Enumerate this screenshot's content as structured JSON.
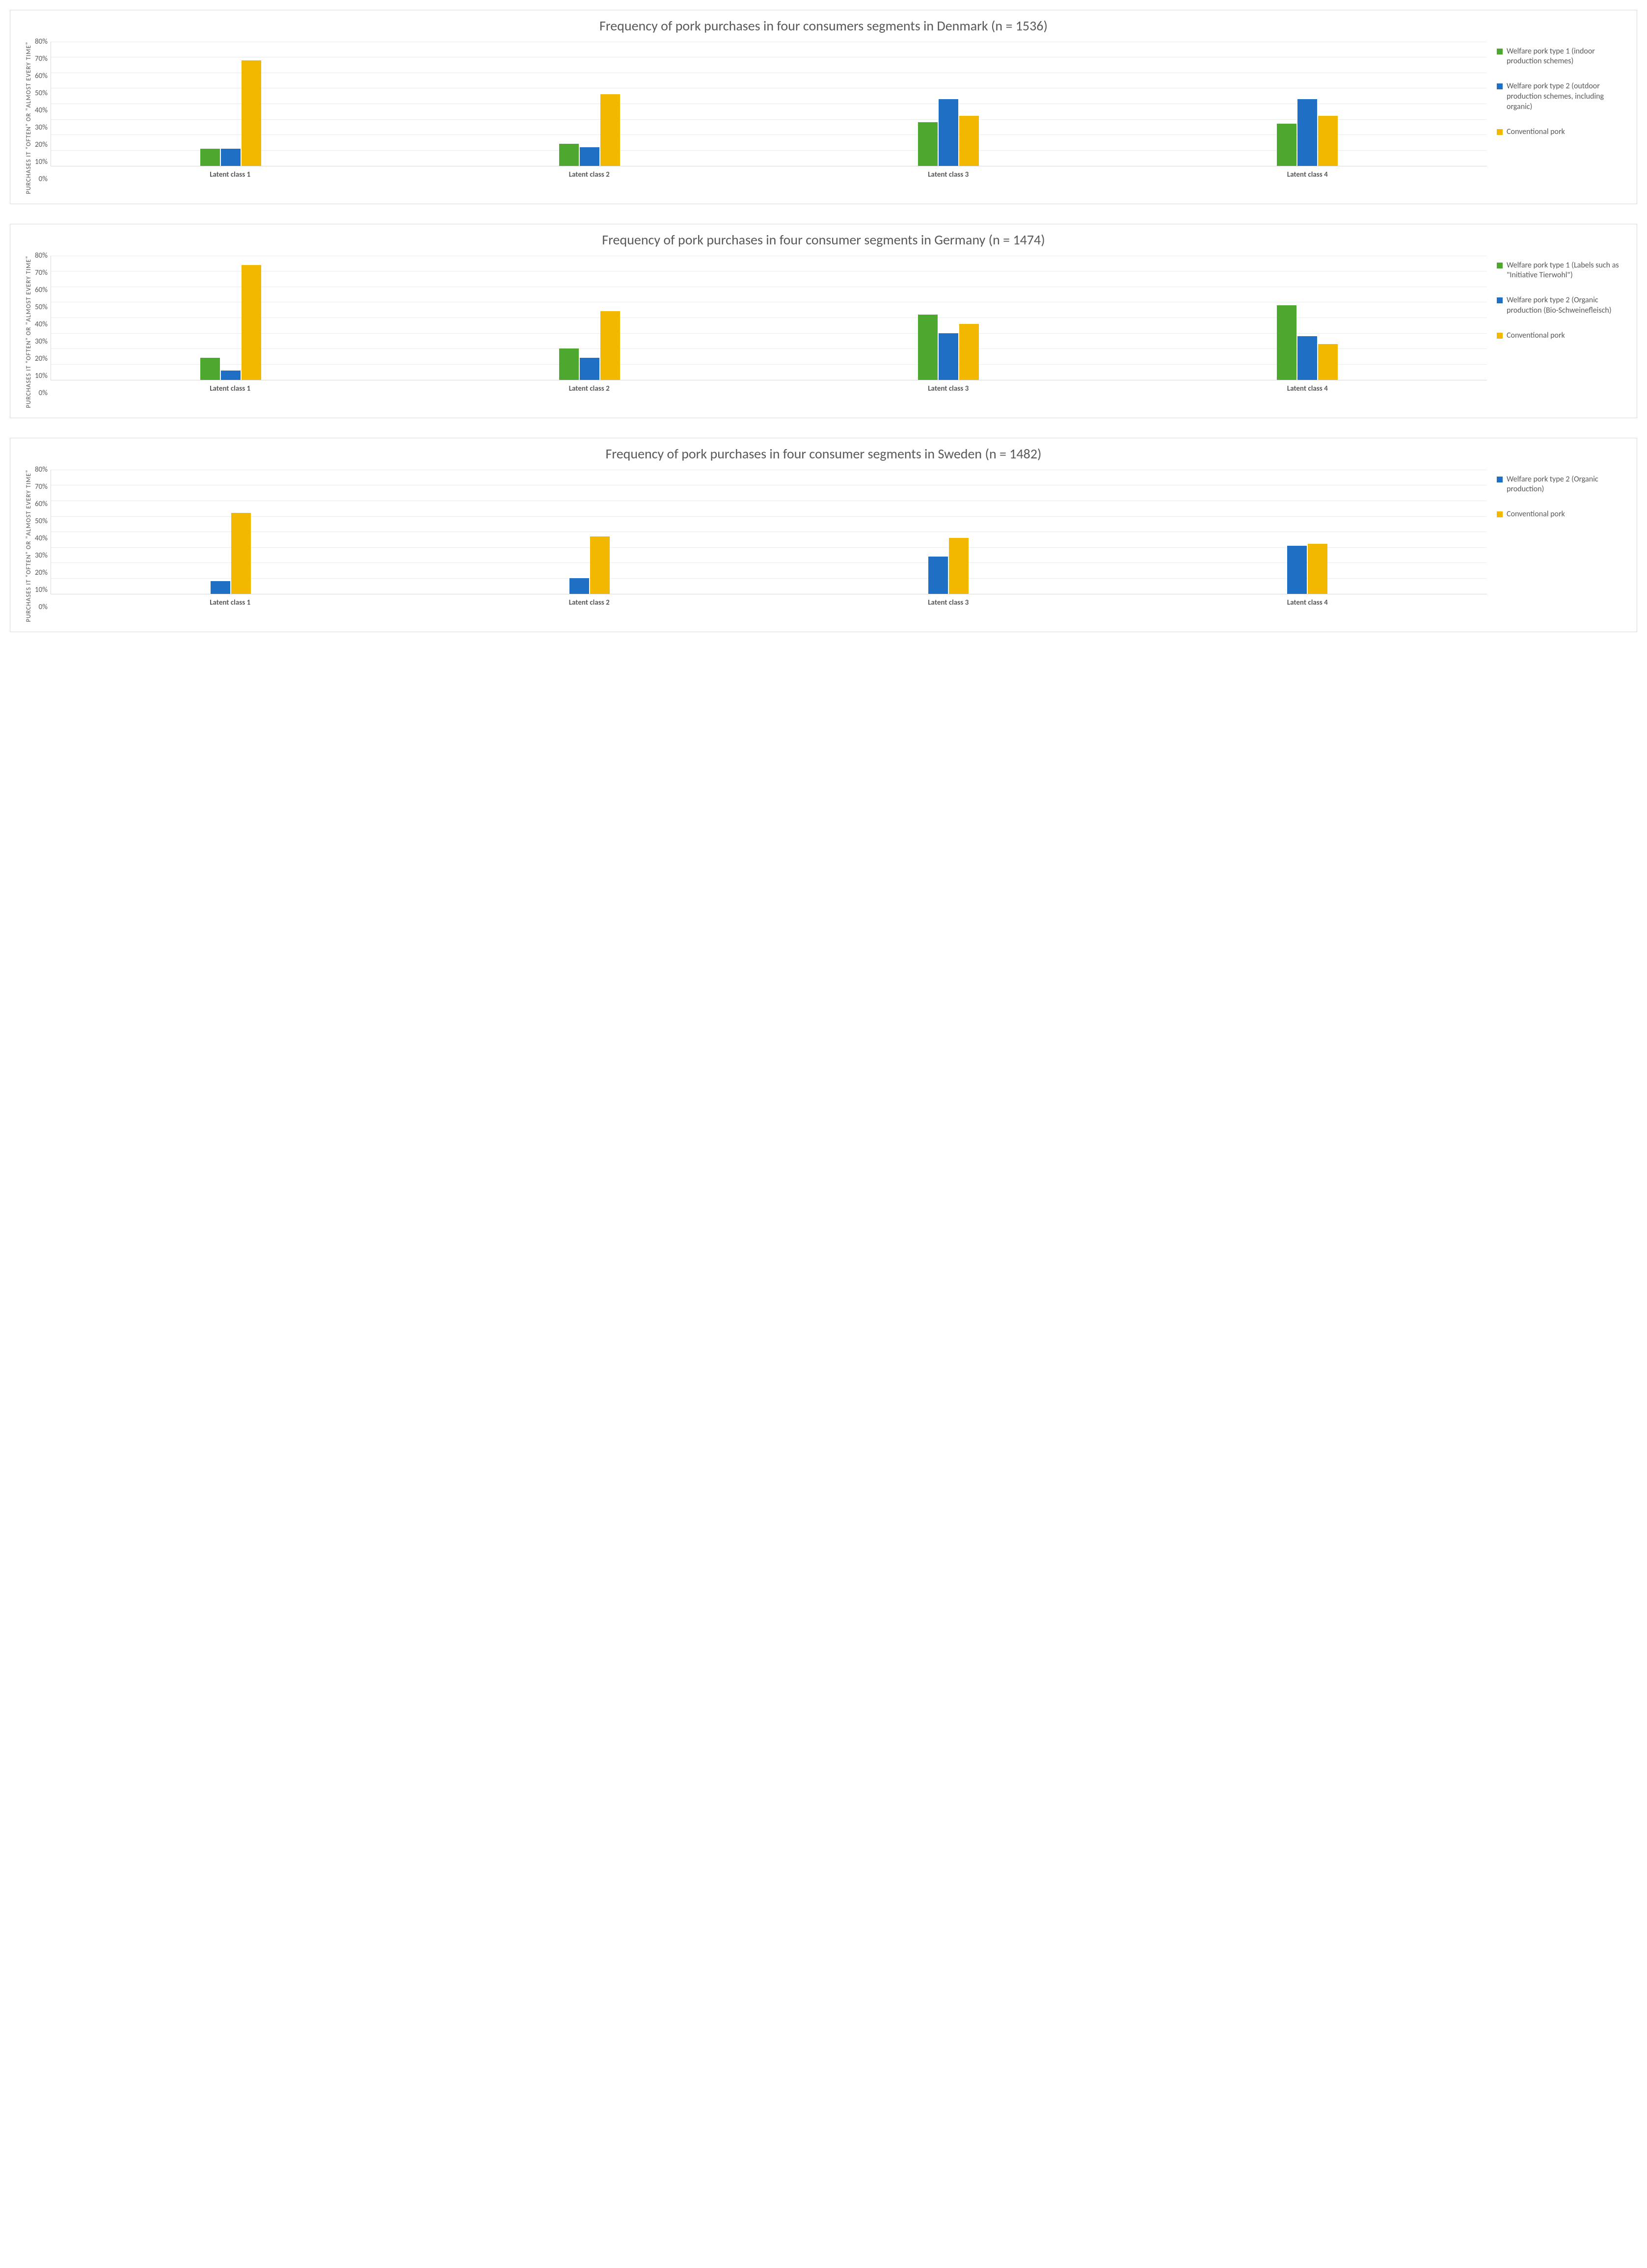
{
  "charts": [
    {
      "title": "Frequency of pork purchases in four consumers segments in Denmark (n = 1536)",
      "y_label": "PURCHASES IT \"OFTEN\" OR \"ALMOST EVERY TIME\"",
      "y_max": 80,
      "y_tick_step": 10,
      "y_ticks": [
        "80%",
        "70%",
        "60%",
        "50%",
        "40%",
        "30%",
        "20%",
        "10%",
        "0%"
      ],
      "categories": [
        "Latent class 1",
        "Latent class 2",
        "Latent class 3",
        "Latent class 4"
      ],
      "series": [
        {
          "label": "Welfare pork type 1 (indoor production schemes)",
          "color": "#4ea72e"
        },
        {
          "label": "Welfare pork type 2 (outdoor production schemes, including organic)",
          "color": "#1f6fc4"
        },
        {
          "label": "Conventional pork",
          "color": "#f2b800"
        }
      ],
      "values": [
        [
          11,
          11,
          68
        ],
        [
          14,
          12,
          46
        ],
        [
          28,
          43,
          32
        ],
        [
          27,
          43,
          32
        ]
      ],
      "grid_color": "#ececec",
      "axis_color": "#d9d9d9",
      "title_fontsize": 28,
      "label_fontsize": 13,
      "tick_fontsize": 15,
      "category_fontsize": 15,
      "legend_fontsize": 16,
      "text_color": "#595959",
      "background_color": "#ffffff",
      "panel_border_color": "#d9d9d9"
    },
    {
      "title": "Frequency of pork purchases in four consumer segments in Germany (n = 1474)",
      "y_label": "PURCHASES IT \"OFTEN\" OR \"ALMOST EVERY TIME\"",
      "y_max": 80,
      "y_tick_step": 10,
      "y_ticks": [
        "80%",
        "70%",
        "60%",
        "50%",
        "40%",
        "30%",
        "20%",
        "10%",
        "0%"
      ],
      "categories": [
        "Latent class 1",
        "Latent class 2",
        "Latent class 3",
        "Latent class 4"
      ],
      "series": [
        {
          "label": "Welfare pork type 1 (Labels such as \"Initiative Tierwohl\")",
          "color": "#4ea72e"
        },
        {
          "label": "Welfare pork type 2 (Organic production (Bio-Schweinefleisch)",
          "color": "#1f6fc4"
        },
        {
          "label": "Conventional pork",
          "color": "#f2b800"
        }
      ],
      "values": [
        [
          14,
          6,
          74
        ],
        [
          20,
          14,
          44
        ],
        [
          42,
          30,
          36
        ],
        [
          48,
          28,
          23
        ]
      ],
      "grid_color": "#ececec",
      "axis_color": "#d9d9d9",
      "title_fontsize": 28,
      "label_fontsize": 13,
      "tick_fontsize": 15,
      "category_fontsize": 15,
      "legend_fontsize": 16,
      "text_color": "#595959",
      "background_color": "#ffffff",
      "panel_border_color": "#d9d9d9"
    },
    {
      "title": "Frequency of pork purchases in four consumer segments in Sweden (n = 1482)",
      "y_label": "PURCHASES IT \"OFTEN\" OR \"ALMOST EVERY TIME\"",
      "y_max": 80,
      "y_tick_step": 10,
      "y_ticks": [
        "80%",
        "70%",
        "60%",
        "50%",
        "40%",
        "30%",
        "20%",
        "10%",
        "0%"
      ],
      "categories": [
        "Latent class 1",
        "Latent class 2",
        "Latent class 3",
        "Latent class 4"
      ],
      "series": [
        {
          "label": "Welfare pork type 2 (Organic production)",
          "color": "#1f6fc4"
        },
        {
          "label": "Conventional pork",
          "color": "#f2b800"
        }
      ],
      "values": [
        [
          8,
          52
        ],
        [
          10,
          37
        ],
        [
          24,
          36
        ],
        [
          31,
          32
        ]
      ],
      "grid_color": "#ececec",
      "axis_color": "#d9d9d9",
      "title_fontsize": 28,
      "label_fontsize": 13,
      "tick_fontsize": 15,
      "category_fontsize": 15,
      "legend_fontsize": 16,
      "text_color": "#595959",
      "background_color": "#ffffff",
      "panel_border_color": "#d9d9d9"
    }
  ]
}
